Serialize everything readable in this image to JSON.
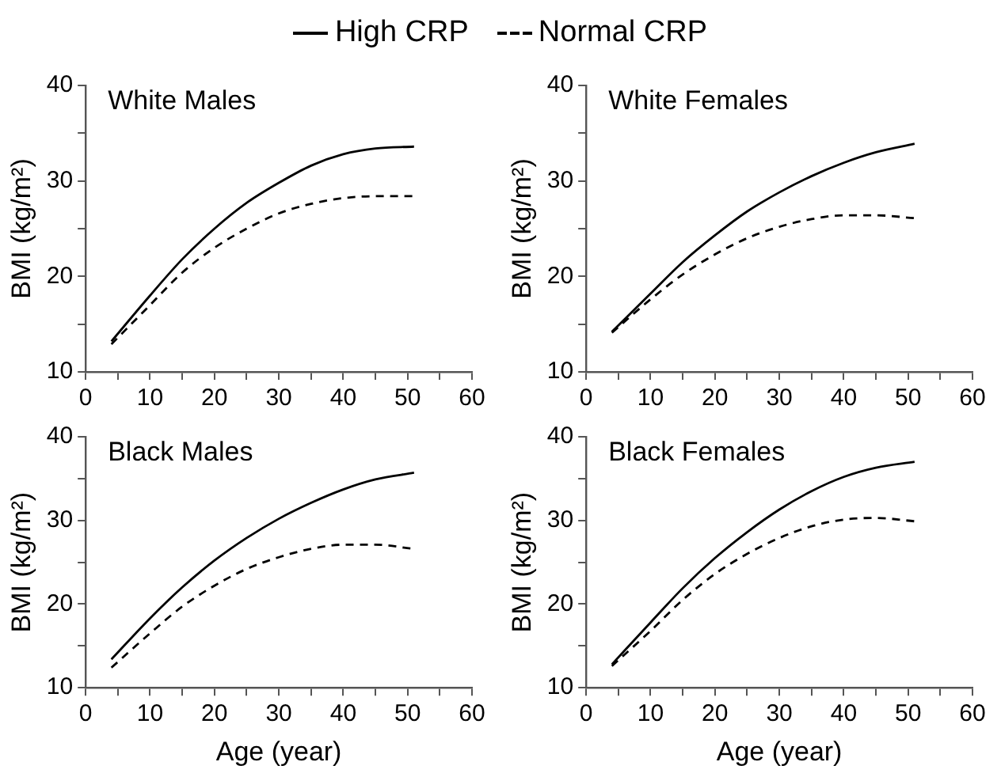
{
  "chart_data": [
    {
      "type": "line",
      "title": "White Males",
      "ylabel": "BMI (kg/m²)",
      "x": [
        4,
        10,
        15,
        20,
        25,
        30,
        35,
        40,
        45,
        51
      ],
      "xlim": [
        0,
        60
      ],
      "ylim": [
        10,
        40
      ],
      "xticks": [
        0,
        {
          "value": 5,
          "label": null
        },
        10,
        {
          "value": 15,
          "label": null
        },
        20,
        {
          "value": 25,
          "label": null
        },
        30,
        {
          "value": 35,
          "label": null
        },
        40,
        {
          "value": 45,
          "label": null
        },
        50,
        {
          "value": 55,
          "label": null
        },
        60
      ],
      "yticks": [
        10,
        {
          "value": 15,
          "label": null
        },
        20,
        {
          "value": 25,
          "label": null
        },
        30,
        {
          "value": 35,
          "label": null
        },
        40
      ],
      "grid": false,
      "marker": "none",
      "legend": "top",
      "series": [
        {
          "name": "High CRP",
          "color": "#000000",
          "line_style": "solid",
          "values": [
            13.2,
            18.0,
            21.8,
            25.0,
            27.7,
            29.8,
            31.6,
            32.8,
            33.4,
            33.6
          ]
        },
        {
          "name": "Normal CRP",
          "color": "#000000",
          "line_style": "dashed",
          "values": [
            12.9,
            17.0,
            20.4,
            23.0,
            25.0,
            26.6,
            27.6,
            28.2,
            28.4,
            28.4
          ]
        }
      ]
    },
    {
      "type": "line",
      "title": "White Females",
      "ylabel": "BMI (kg/m²)",
      "x": [
        4,
        10,
        15,
        20,
        25,
        30,
        35,
        40,
        45,
        51
      ],
      "xlim": [
        0,
        60
      ],
      "ylim": [
        10,
        40
      ],
      "xticks": [
        0,
        {
          "value": 5,
          "label": null
        },
        10,
        {
          "value": 15,
          "label": null
        },
        20,
        {
          "value": 25,
          "label": null
        },
        30,
        {
          "value": 35,
          "label": null
        },
        40,
        {
          "value": 45,
          "label": null
        },
        50,
        {
          "value": 55,
          "label": null
        },
        60
      ],
      "yticks": [
        10,
        {
          "value": 15,
          "label": null
        },
        20,
        {
          "value": 25,
          "label": null
        },
        30,
        {
          "value": 35,
          "label": null
        },
        40
      ],
      "grid": false,
      "marker": "none",
      "series": [
        {
          "color": "#000000",
          "line_style": "solid",
          "values": [
            14.2,
            18.2,
            21.5,
            24.3,
            26.8,
            28.8,
            30.5,
            31.9,
            33.0,
            33.9
          ]
        },
        {
          "color": "#000000",
          "line_style": "dashed",
          "values": [
            14.1,
            17.6,
            20.2,
            22.3,
            24.0,
            25.2,
            26.0,
            26.4,
            26.4,
            26.1
          ]
        }
      ]
    },
    {
      "type": "line",
      "title": "Black Males",
      "xlabel": "Age (year)",
      "ylabel": "BMI (kg/m²)",
      "x": [
        4,
        10,
        15,
        20,
        25,
        30,
        35,
        40,
        45,
        51
      ],
      "xlim": [
        0,
        60
      ],
      "ylim": [
        10,
        40
      ],
      "xticks": [
        0,
        {
          "value": 5,
          "label": null
        },
        10,
        {
          "value": 15,
          "label": null
        },
        20,
        {
          "value": 25,
          "label": null
        },
        30,
        {
          "value": 35,
          "label": null
        },
        40,
        {
          "value": 45,
          "label": null
        },
        50,
        {
          "value": 55,
          "label": null
        },
        60
      ],
      "yticks": [
        10,
        {
          "value": 15,
          "label": null
        },
        20,
        {
          "value": 25,
          "label": null
        },
        30,
        {
          "value": 35,
          "label": null
        },
        40
      ],
      "grid": false,
      "marker": "none",
      "series": [
        {
          "color": "#000000",
          "line_style": "solid",
          "values": [
            13.4,
            18.3,
            22.0,
            25.2,
            27.9,
            30.2,
            32.1,
            33.7,
            34.9,
            35.7
          ]
        },
        {
          "color": "#000000",
          "line_style": "dashed",
          "values": [
            12.4,
            16.5,
            19.7,
            22.2,
            24.2,
            25.6,
            26.6,
            27.1,
            27.1,
            26.6
          ]
        }
      ]
    },
    {
      "type": "line",
      "title": "Black Females",
      "xlabel": "Age (year)",
      "ylabel": "BMI (kg/m²)",
      "x": [
        4,
        10,
        15,
        20,
        25,
        30,
        35,
        40,
        45,
        51
      ],
      "xlim": [
        0,
        60
      ],
      "ylim": [
        10,
        40
      ],
      "xticks": [
        0,
        {
          "value": 5,
          "label": null
        },
        10,
        {
          "value": 15,
          "label": null
        },
        20,
        {
          "value": 25,
          "label": null
        },
        30,
        {
          "value": 35,
          "label": null
        },
        40,
        {
          "value": 45,
          "label": null
        },
        50,
        {
          "value": 55,
          "label": null
        },
        60
      ],
      "yticks": [
        10,
        {
          "value": 15,
          "label": null
        },
        20,
        {
          "value": 25,
          "label": null
        },
        30,
        {
          "value": 35,
          "label": null
        },
        40
      ],
      "grid": false,
      "marker": "none",
      "series": [
        {
          "color": "#000000",
          "line_style": "solid",
          "values": [
            12.8,
            17.8,
            21.9,
            25.5,
            28.6,
            31.3,
            33.5,
            35.2,
            36.3,
            37.0
          ]
        },
        {
          "color": "#000000",
          "line_style": "dashed",
          "values": [
            12.6,
            16.8,
            20.5,
            23.6,
            26.0,
            27.9,
            29.3,
            30.1,
            30.3,
            29.9
          ]
        }
      ]
    }
  ]
}
